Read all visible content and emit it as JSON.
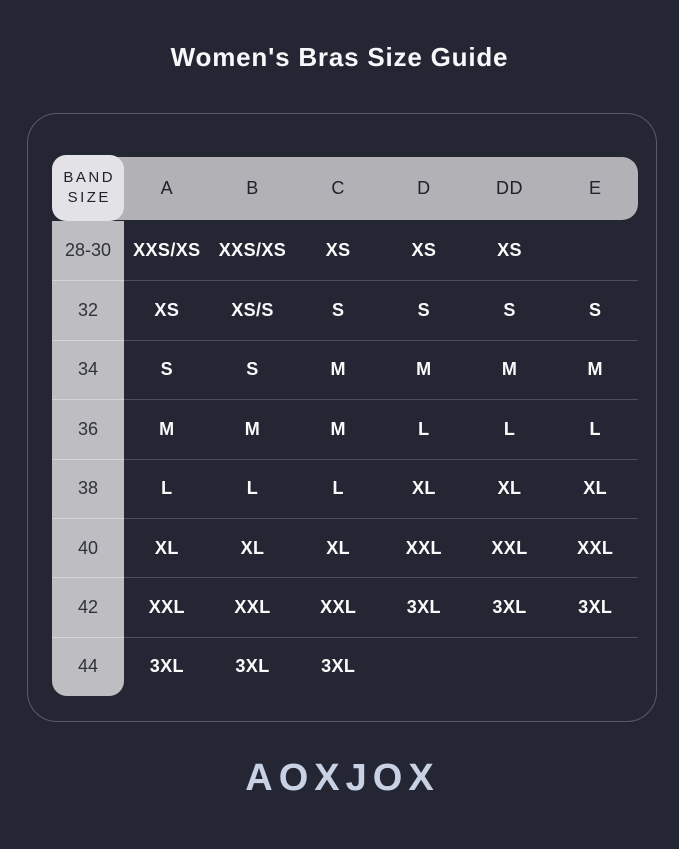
{
  "page": {
    "background_color": "#242633"
  },
  "title": "Women's Bras Size Guide",
  "brand": {
    "logo_text": "AOXJOX"
  },
  "chart_data": {
    "type": "table",
    "title": "Women's Bras Size Guide",
    "corner_header": [
      "BAND",
      "SIZE"
    ],
    "columns": [
      "A",
      "B",
      "C",
      "D",
      "DD",
      "E"
    ],
    "rows": [
      {
        "band": "28-30",
        "values": [
          "XXS/XS",
          "XXS/XS",
          "XS",
          "XS",
          "XS",
          ""
        ]
      },
      {
        "band": "32",
        "values": [
          "XS",
          "XS/S",
          "S",
          "S",
          "S",
          "S"
        ]
      },
      {
        "band": "34",
        "values": [
          "S",
          "S",
          "M",
          "M",
          "M",
          "M"
        ]
      },
      {
        "band": "36",
        "values": [
          "M",
          "M",
          "M",
          "L",
          "L",
          "L"
        ]
      },
      {
        "band": "38",
        "values": [
          "L",
          "L",
          "L",
          "XL",
          "XL",
          "XL"
        ]
      },
      {
        "band": "40",
        "values": [
          "XL",
          "XL",
          "XL",
          "XXL",
          "XXL",
          "XXL"
        ]
      },
      {
        "band": "42",
        "values": [
          "XXL",
          "XXL",
          "XXL",
          "3XL",
          "3XL",
          "3XL"
        ]
      },
      {
        "band": "44",
        "values": [
          "3XL",
          "3XL",
          "3XL",
          "",
          "",
          ""
        ]
      }
    ]
  },
  "colors": {
    "background": "#242633",
    "panel_border": "#575b69",
    "cup_header_strip": "#b1b1b6",
    "corner_cell": "#e3e3e7",
    "band_column": "#bdbdc2",
    "band_divider": "#d4d4d8",
    "row_divider": "#4c505c",
    "title_text": "#f7f8fa",
    "cell_text": "#fafafa",
    "header_text": "#20232b",
    "logo_text": "#c9d2e4"
  }
}
